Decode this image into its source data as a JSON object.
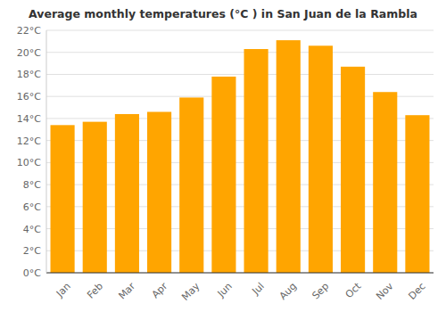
{
  "chart_data": {
    "type": "bar",
    "title": "Average monthly temperatures (°C ) in San Juan de la Rambla",
    "categories": [
      "Jan",
      "Feb",
      "Mar",
      "Apr",
      "May",
      "Jun",
      "Jul",
      "Aug",
      "Sep",
      "Oct",
      "Nov",
      "Dec"
    ],
    "values": [
      13.4,
      13.7,
      14.4,
      14.6,
      15.9,
      17.8,
      20.3,
      21.1,
      20.6,
      18.7,
      16.4,
      14.3
    ],
    "color": "#FFA500",
    "ylim": [
      0,
      22
    ],
    "yticks": [
      {
        "value": 0,
        "label": "0°C"
      },
      {
        "value": 2,
        "label": "2°C"
      },
      {
        "value": 4,
        "label": "4°C"
      },
      {
        "value": 6,
        "label": "6°C"
      },
      {
        "value": 8,
        "label": "8°C"
      },
      {
        "value": 10,
        "label": "10°C"
      },
      {
        "value": 12,
        "label": "12°C"
      },
      {
        "value": 14,
        "label": "14°C"
      },
      {
        "value": 16,
        "label": "16°C"
      },
      {
        "value": 18,
        "label": "18°C"
      },
      {
        "value": 20,
        "label": "20°C"
      },
      {
        "value": 22,
        "label": "22°C"
      }
    ],
    "grid": true
  }
}
